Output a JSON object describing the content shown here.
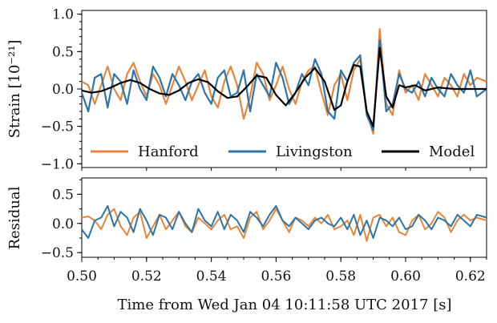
{
  "chart_data": [
    {
      "type": "line",
      "panel": "strain",
      "ylabel": "Strain [10⁻²¹]",
      "ylim": [
        -1.05,
        1.05
      ],
      "yticks": [
        -1.0,
        -0.5,
        0.0,
        0.5,
        1.0
      ],
      "ytick_labels": [
        "−1.0",
        "−0.5",
        "0.0",
        "0.5",
        "1.0"
      ],
      "xlim": [
        0.5,
        0.625
      ],
      "grid": false,
      "legend_position": "bottom",
      "series": [
        {
          "name": "Hanford",
          "color": "#e8853d",
          "x": [
            0.5,
            0.502,
            0.504,
            0.506,
            0.508,
            0.51,
            0.512,
            0.514,
            0.516,
            0.518,
            0.52,
            0.522,
            0.524,
            0.526,
            0.528,
            0.53,
            0.532,
            0.534,
            0.536,
            0.538,
            0.54,
            0.542,
            0.544,
            0.546,
            0.548,
            0.55,
            0.552,
            0.554,
            0.556,
            0.558,
            0.56,
            0.562,
            0.564,
            0.566,
            0.568,
            0.57,
            0.572,
            0.574,
            0.576,
            0.578,
            0.58,
            0.582,
            0.584,
            0.586,
            0.588,
            0.59,
            0.592,
            0.594,
            0.596,
            0.598,
            0.6,
            0.602,
            0.604,
            0.606,
            0.608,
            0.61,
            0.612,
            0.614,
            0.616,
            0.618,
            0.62,
            0.622,
            0.625
          ],
          "y": [
            0.1,
            0.05,
            -0.2,
            0.05,
            0.3,
            0.0,
            -0.15,
            0.2,
            0.35,
            0.1,
            -0.1,
            0.2,
            0.05,
            -0.2,
            0.05,
            0.3,
            0.1,
            -0.15,
            0.05,
            0.25,
            -0.1,
            -0.25,
            0.1,
            0.3,
            0.05,
            -0.4,
            -0.1,
            0.35,
            0.2,
            -0.15,
            0.05,
            0.3,
            0.0,
            -0.2,
            0.1,
            0.25,
            0.3,
            -0.05,
            -0.35,
            0.05,
            0.2,
            -0.15,
            0.25,
            0.4,
            -0.3,
            -0.6,
            0.8,
            -0.2,
            -0.35,
            0.25,
            -0.05,
            0.05,
            -0.15,
            0.2,
            0.05,
            -0.1,
            0.15,
            0.05,
            -0.1,
            0.2,
            0.05,
            0.15,
            0.1
          ]
        },
        {
          "name": "Livingston",
          "color": "#2d75a8",
          "x": [
            0.5,
            0.502,
            0.504,
            0.506,
            0.508,
            0.51,
            0.512,
            0.514,
            0.516,
            0.518,
            0.52,
            0.522,
            0.524,
            0.526,
            0.528,
            0.53,
            0.532,
            0.534,
            0.536,
            0.538,
            0.54,
            0.542,
            0.544,
            0.546,
            0.548,
            0.55,
            0.552,
            0.554,
            0.556,
            0.558,
            0.56,
            0.562,
            0.564,
            0.566,
            0.568,
            0.57,
            0.572,
            0.574,
            0.576,
            0.578,
            0.58,
            0.582,
            0.584,
            0.586,
            0.588,
            0.59,
            0.592,
            0.594,
            0.596,
            0.598,
            0.6,
            0.602,
            0.604,
            0.606,
            0.608,
            0.61,
            0.612,
            0.614,
            0.616,
            0.618,
            0.62,
            0.622,
            0.625
          ],
          "y": [
            -0.05,
            -0.3,
            0.15,
            0.2,
            -0.25,
            0.2,
            0.1,
            -0.2,
            0.25,
            0.0,
            -0.15,
            0.3,
            0.15,
            -0.1,
            0.2,
            0.05,
            -0.15,
            0.1,
            0.2,
            -0.05,
            -0.2,
            0.15,
            0.25,
            -0.1,
            -0.05,
            0.25,
            -0.3,
            0.2,
            0.05,
            -0.1,
            0.35,
            0.15,
            -0.2,
            -0.05,
            0.2,
            0.05,
            0.4,
            0.2,
            -0.3,
            -0.4,
            0.25,
            0.1,
            0.35,
            0.45,
            -0.35,
            -0.55,
            0.65,
            -0.3,
            -0.2,
            0.2,
            0.0,
            -0.05,
            0.1,
            -0.1,
            0.15,
            0.0,
            -0.1,
            0.2,
            0.05,
            -0.05,
            0.25,
            -0.1,
            0.0
          ]
        },
        {
          "name": "Model",
          "color": "#000000",
          "x": [
            0.5,
            0.503,
            0.506,
            0.509,
            0.512,
            0.515,
            0.518,
            0.521,
            0.524,
            0.527,
            0.53,
            0.533,
            0.536,
            0.539,
            0.542,
            0.545,
            0.548,
            0.551,
            0.554,
            0.557,
            0.56,
            0.563,
            0.566,
            0.569,
            0.572,
            0.575,
            0.578,
            0.58,
            0.582,
            0.584,
            0.586,
            0.588,
            0.59,
            0.592,
            0.594,
            0.596,
            0.598,
            0.6,
            0.603,
            0.606,
            0.61,
            0.615,
            0.62,
            0.625
          ],
          "y": [
            -0.02,
            -0.05,
            -0.03,
            0.02,
            0.08,
            0.12,
            0.08,
            0.0,
            -0.06,
            -0.08,
            -0.02,
            0.08,
            0.13,
            0.09,
            -0.03,
            -0.12,
            -0.1,
            0.03,
            0.18,
            0.15,
            -0.08,
            -0.22,
            -0.05,
            0.15,
            0.28,
            0.1,
            -0.28,
            -0.22,
            0.1,
            0.32,
            0.3,
            -0.3,
            -0.5,
            0.55,
            -0.1,
            -0.25,
            0.05,
            0.02,
            0.05,
            -0.02,
            0.02,
            0.0,
            0.0,
            0.0
          ]
        }
      ]
    },
    {
      "type": "line",
      "panel": "residual",
      "ylabel": "Residual",
      "ylim": [
        -0.58,
        0.78
      ],
      "yticks": [
        -0.5,
        0.0,
        0.5
      ],
      "ytick_labels": [
        "−0.5",
        "0.0",
        "0.5"
      ],
      "xlim": [
        0.5,
        0.625
      ],
      "xticks": [
        0.5,
        0.52,
        0.54,
        0.56,
        0.58,
        0.6,
        0.62
      ],
      "xtick_labels": [
        "0.50",
        "0.52",
        "0.54",
        "0.56",
        "0.58",
        "0.60",
        "0.62"
      ],
      "xlabel": "Time from Wed Jan 04 10:11:58 UTC 2017 [s]",
      "grid": false,
      "series": [
        {
          "name": "Hanford",
          "color": "#e8853d",
          "x": [
            0.5,
            0.502,
            0.504,
            0.506,
            0.508,
            0.51,
            0.512,
            0.514,
            0.516,
            0.518,
            0.52,
            0.522,
            0.524,
            0.526,
            0.528,
            0.53,
            0.532,
            0.534,
            0.536,
            0.538,
            0.54,
            0.542,
            0.544,
            0.546,
            0.548,
            0.55,
            0.552,
            0.554,
            0.556,
            0.558,
            0.56,
            0.562,
            0.564,
            0.566,
            0.568,
            0.57,
            0.572,
            0.574,
            0.576,
            0.578,
            0.58,
            0.582,
            0.584,
            0.586,
            0.588,
            0.59,
            0.592,
            0.594,
            0.596,
            0.598,
            0.6,
            0.602,
            0.604,
            0.606,
            0.608,
            0.61,
            0.612,
            0.614,
            0.616,
            0.618,
            0.62,
            0.622,
            0.625
          ],
          "y": [
            0.1,
            0.12,
            0.05,
            -0.1,
            0.15,
            0.25,
            -0.05,
            -0.2,
            0.1,
            0.2,
            -0.25,
            -0.05,
            0.15,
            -0.1,
            0.05,
            0.2,
            -0.05,
            -0.15,
            0.1,
            0.0,
            -0.1,
            0.05,
            0.15,
            -0.1,
            -0.05,
            -0.25,
            0.1,
            0.2,
            -0.1,
            0.05,
            0.25,
            0.05,
            -0.15,
            0.1,
            0.05,
            -0.05,
            0.1,
            0.0,
            0.15,
            -0.1,
            -0.05,
            0.05,
            -0.2,
            0.15,
            -0.3,
            0.1,
            0.15,
            -0.05,
            0.1,
            -0.15,
            -0.2,
            0.05,
            0.15,
            -0.1,
            0.0,
            0.2,
            0.1,
            -0.15,
            0.05,
            0.15,
            0.05,
            0.1,
            0.05
          ]
        },
        {
          "name": "Livingston",
          "color": "#2d75a8",
          "x": [
            0.5,
            0.502,
            0.504,
            0.506,
            0.508,
            0.51,
            0.512,
            0.514,
            0.516,
            0.518,
            0.52,
            0.522,
            0.524,
            0.526,
            0.528,
            0.53,
            0.532,
            0.534,
            0.536,
            0.538,
            0.54,
            0.542,
            0.544,
            0.546,
            0.548,
            0.55,
            0.552,
            0.554,
            0.556,
            0.558,
            0.56,
            0.562,
            0.564,
            0.566,
            0.568,
            0.57,
            0.572,
            0.574,
            0.576,
            0.578,
            0.58,
            0.582,
            0.584,
            0.586,
            0.588,
            0.59,
            0.592,
            0.594,
            0.596,
            0.598,
            0.6,
            0.602,
            0.604,
            0.606,
            0.608,
            0.61,
            0.612,
            0.614,
            0.616,
            0.618,
            0.62,
            0.622,
            0.625
          ],
          "y": [
            -0.1,
            -0.25,
            0.05,
            0.1,
            0.3,
            -0.05,
            0.2,
            0.1,
            -0.15,
            0.25,
            0.05,
            -0.2,
            0.15,
            0.1,
            -0.1,
            0.2,
            0.0,
            -0.15,
            0.25,
            0.05,
            -0.05,
            0.2,
            -0.1,
            0.15,
            0.05,
            -0.15,
            0.2,
            0.1,
            -0.05,
            0.15,
            0.3,
            0.05,
            -0.05,
            0.1,
            0.0,
            -0.1,
            0.05,
            0.1,
            0.0,
            -0.05,
            0.1,
            -0.1,
            0.15,
            -0.2,
            0.05,
            -0.25,
            0.1,
            0.05,
            -0.05,
            0.1,
            -0.1,
            -0.05,
            0.15,
            0.05,
            -0.1,
            0.1,
            0.05,
            -0.05,
            0.15,
            0.05,
            -0.05,
            0.15,
            0.1
          ]
        }
      ]
    }
  ],
  "legend": {
    "hanford": "Hanford",
    "livingston": "Livingston",
    "model": "Model"
  }
}
